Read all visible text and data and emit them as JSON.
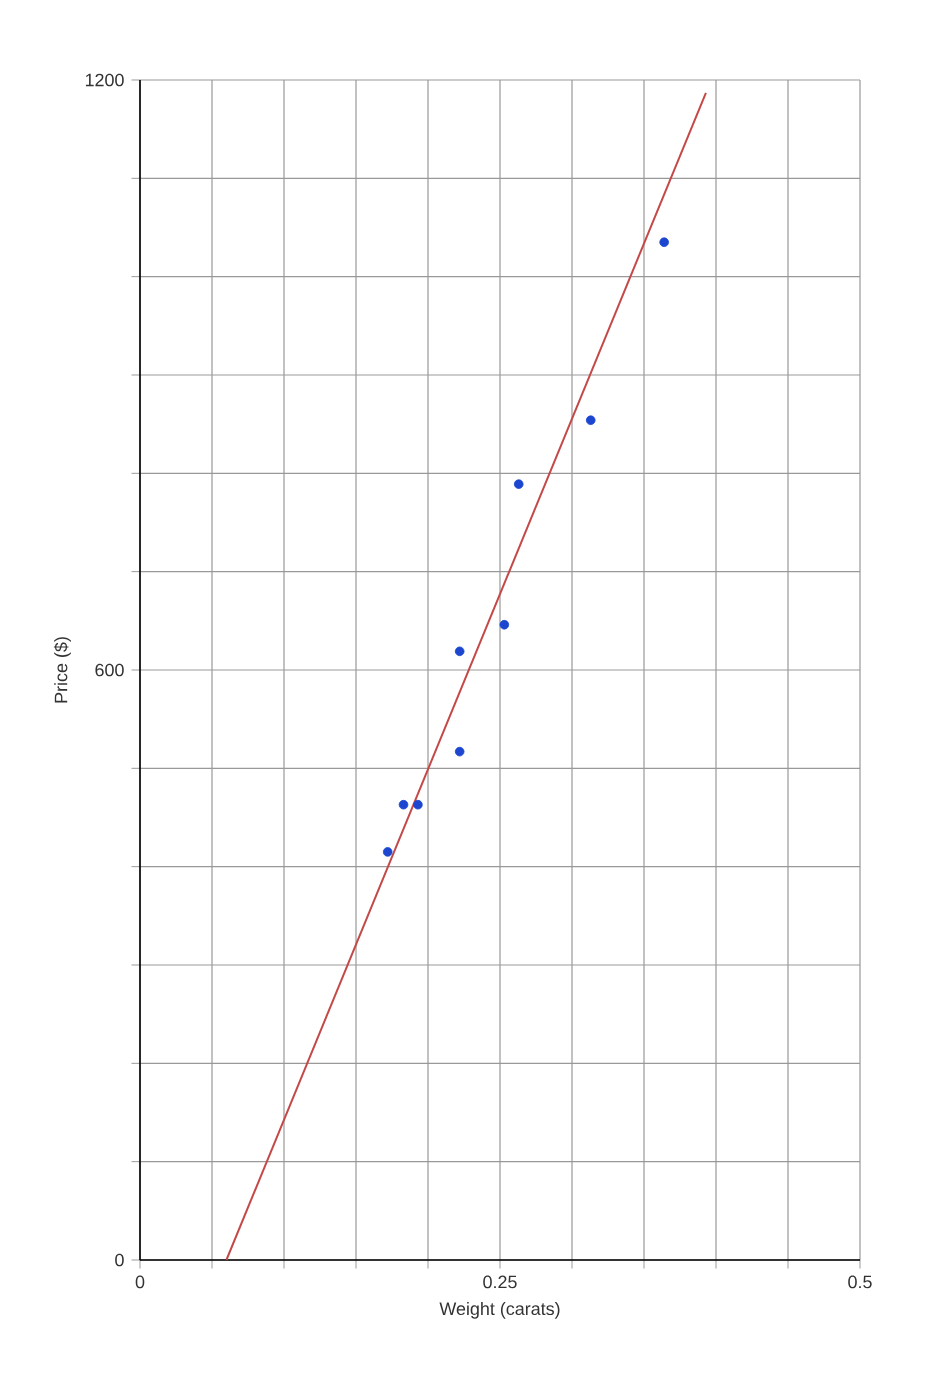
{
  "chart_data": {
    "type": "scatter",
    "xlabel": "Weight (carats)",
    "ylabel": "Price ($)",
    "xlim": [
      0,
      0.5
    ],
    "ylim": [
      0,
      1200
    ],
    "xticks": [
      0,
      {
        "value": 0.05,
        "label": null
      },
      {
        "value": 0.1,
        "label": null
      },
      {
        "value": 0.15,
        "label": null
      },
      {
        "value": 0.2,
        "label": null
      },
      0.25,
      {
        "value": 0.3,
        "label": null
      },
      {
        "value": 0.35,
        "label": null
      },
      {
        "value": 0.4,
        "label": null
      },
      {
        "value": 0.45,
        "label": null
      },
      0.5
    ],
    "yticks": [
      0,
      {
        "value": 100,
        "label": null
      },
      {
        "value": 200,
        "label": null
      },
      {
        "value": 300,
        "label": null
      },
      {
        "value": 400,
        "label": null
      },
      {
        "value": 500,
        "label": null
      },
      600,
      {
        "value": 700,
        "label": null
      },
      {
        "value": 800,
        "label": null
      },
      {
        "value": 900,
        "label": null
      },
      {
        "value": 1000,
        "label": null
      },
      {
        "value": 1100,
        "label": null
      },
      1200
    ],
    "grid": true,
    "series": [
      {
        "marker": "circle",
        "color": "#1c46d0",
        "x": [
          0.172,
          0.183,
          0.193,
          0.222,
          0.222,
          0.253,
          0.263,
          0.313,
          0.364
        ],
        "values": [
          415,
          463,
          463,
          517,
          619,
          646,
          789,
          854,
          1035
        ]
      },
      {
        "type": "line",
        "color": "#c44848",
        "x": [
          0.06,
          0.393
        ],
        "values": [
          0,
          1187
        ]
      }
    ]
  }
}
